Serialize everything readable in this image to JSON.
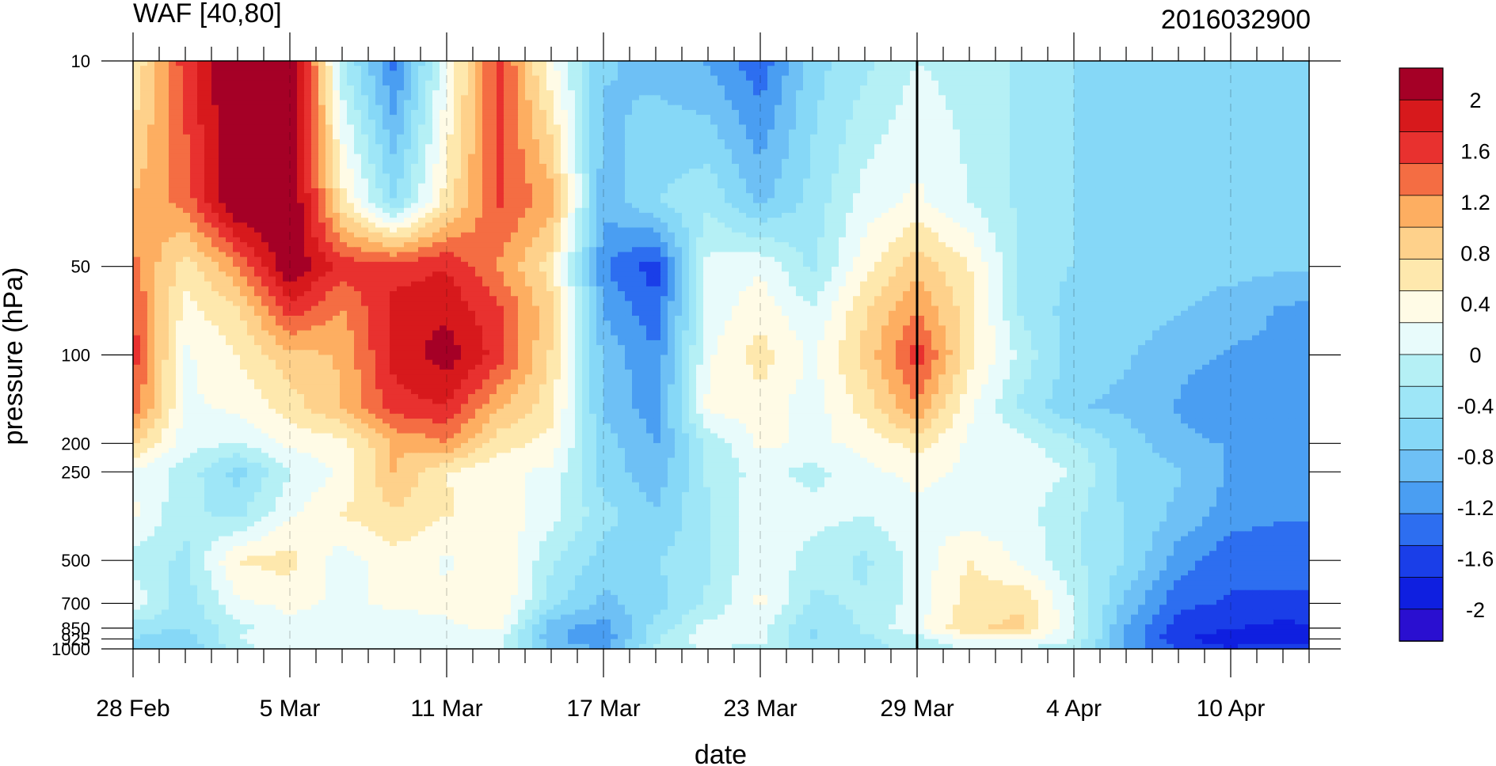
{
  "chart_data": {
    "type": "heatmap",
    "title": "WAF [40,80]",
    "subtitle": "2016032900",
    "xlabel": "date",
    "ylabel": "pressure (hPa)",
    "x_ticks": [
      {
        "label": "28 Feb",
        "day": 0
      },
      {
        "label": "5 Mar",
        "day": 6
      },
      {
        "label": "11 Mar",
        "day": 12
      },
      {
        "label": "17 Mar",
        "day": 18
      },
      {
        "label": "23 Mar",
        "day": 24
      },
      {
        "label": "29 Mar",
        "day": 30
      },
      {
        "label": "4 Apr",
        "day": 36
      },
      {
        "label": "10 Apr",
        "day": 42
      }
    ],
    "x_range": [
      "28 Feb",
      "15 Apr"
    ],
    "y_ticks": [
      {
        "label": "10",
        "p": 10
      },
      {
        "label": "50",
        "p": 50
      },
      {
        "label": "100",
        "p": 100
      },
      {
        "label": "200",
        "p": 200
      },
      {
        "label": "250",
        "p": 250
      },
      {
        "label": "500",
        "p": 500
      },
      {
        "label": "700",
        "p": 700
      },
      {
        "label": "850",
        "p": 850
      },
      {
        "label": "925",
        "p": 925
      },
      {
        "label": "1000",
        "p": 1000
      }
    ],
    "y_scale": "log",
    "y_reversed": true,
    "marked_date": "29 Mar",
    "colorbar": {
      "labels": [
        "2",
        "1.6",
        "1.2",
        "0.8",
        "0.4",
        "0",
        "-0.4",
        "-0.8",
        "-1.2",
        "-1.6",
        "-2"
      ],
      "colors": [
        "#a50026",
        "#d7191c",
        "#e8312f",
        "#f46d43",
        "#fdae61",
        "#fed18b",
        "#fee8ad",
        "#fffbe6",
        "#e8fbfb",
        "#b5f0f5",
        "#9ee6f7",
        "#86d8f7",
        "#6ec0f5",
        "#4a9ef2",
        "#2d6ef0",
        "#1a3ee8",
        "#0f1fe0",
        "#2a0fd0"
      ]
    },
    "grid": {
      "levels": [
        "10",
        "30",
        "50",
        "70",
        "100",
        "150",
        "200",
        "250",
        "350",
        "500",
        "700",
        "850",
        "925",
        "1000"
      ],
      "days": [
        0,
        2,
        4,
        6,
        8,
        10,
        12,
        14,
        16,
        18,
        20,
        22,
        24,
        26,
        28,
        30,
        32,
        34,
        36,
        38,
        40,
        42,
        44,
        46
      ],
      "values": [
        [
          0.5,
          1.6,
          2.3,
          2.5,
          -0.2,
          -1.3,
          0.2,
          1.6,
          0.3,
          -0.7,
          -0.8,
          -1.0,
          -1.4,
          -0.6,
          -0.3,
          0.0,
          -0.1,
          -0.3,
          -0.5,
          -0.5,
          -0.5,
          -0.5,
          -0.5,
          -0.5
        ],
        [
          1.0,
          1.3,
          2.3,
          2.3,
          0.6,
          -0.5,
          0.6,
          1.5,
          1.1,
          -0.9,
          -0.5,
          -0.3,
          -0.8,
          -0.4,
          0.1,
          0.3,
          0.0,
          -0.3,
          -0.5,
          -0.6,
          -0.6,
          -0.6,
          -0.5,
          -0.5
        ],
        [
          1.3,
          0.6,
          1.2,
          2.2,
          1.6,
          1.6,
          1.7,
          1.2,
          0.6,
          -1.2,
          -1.6,
          0.1,
          0.2,
          -0.3,
          0.4,
          0.9,
          0.5,
          -0.3,
          -0.5,
          -0.6,
          -0.6,
          -0.6,
          -0.7,
          -0.7
        ],
        [
          1.5,
          0.4,
          0.7,
          1.6,
          1.2,
          1.8,
          1.9,
          1.5,
          0.8,
          -1.0,
          -1.4,
          0.1,
          0.4,
          0.0,
          0.7,
          1.2,
          0.6,
          -0.3,
          -0.6,
          -0.6,
          -0.7,
          -0.9,
          -1.0,
          -1.1
        ],
        [
          1.6,
          0.2,
          0.5,
          0.9,
          1.0,
          1.8,
          2.1,
          1.6,
          0.7,
          -0.8,
          -1.2,
          0.2,
          0.6,
          0.2,
          0.8,
          1.6,
          0.6,
          -0.1,
          -0.6,
          -0.7,
          -0.9,
          -1.0,
          -1.0,
          -1.1
        ],
        [
          1.4,
          0.2,
          0.3,
          0.6,
          1.0,
          1.6,
          1.7,
          1.0,
          0.6,
          -0.8,
          -1.1,
          0.3,
          0.4,
          0.1,
          0.6,
          1.2,
          0.3,
          -0.3,
          -0.7,
          -0.8,
          -1.0,
          -1.2,
          -1.1,
          -1.1
        ],
        [
          0.8,
          0.1,
          0.0,
          0.3,
          0.4,
          1.0,
          1.2,
          0.6,
          0.4,
          -0.6,
          -1.0,
          -0.2,
          0.3,
          0.2,
          0.3,
          0.6,
          0.2,
          0.1,
          -0.2,
          -0.6,
          -0.9,
          -1.0,
          -1.1,
          -1.1
        ],
        [
          0.2,
          -0.1,
          -0.6,
          0.0,
          0.3,
          1.0,
          0.5,
          0.3,
          0.2,
          -0.6,
          -0.9,
          -0.2,
          0.1,
          -0.1,
          0.2,
          0.3,
          0.2,
          0.1,
          0.0,
          -0.6,
          -0.7,
          -1.0,
          -1.1,
          -1.1
        ],
        [
          0.3,
          -0.2,
          -0.3,
          0.2,
          0.5,
          0.7,
          0.5,
          0.4,
          0.1,
          -0.4,
          -0.7,
          -0.3,
          0.2,
          0.1,
          0.0,
          0.2,
          0.1,
          0.1,
          -0.2,
          -0.5,
          -0.8,
          -1.1,
          -1.2,
          -1.2
        ],
        [
          -0.1,
          -0.3,
          0.5,
          0.6,
          0.1,
          0.4,
          0.2,
          0.5,
          -0.2,
          -0.6,
          -0.5,
          -0.3,
          0.2,
          -0.1,
          -0.3,
          0.1,
          0.5,
          0.2,
          -0.2,
          -0.5,
          -1.1,
          -1.4,
          -1.4,
          -1.4
        ],
        [
          0.2,
          -0.4,
          0.2,
          0.3,
          0.2,
          0.3,
          0.3,
          0.5,
          -0.4,
          -0.8,
          -0.6,
          -0.2,
          0.3,
          -0.3,
          -0.2,
          0.1,
          0.6,
          0.7,
          0.0,
          -0.8,
          -1.4,
          -1.5,
          -1.5,
          -1.5
        ],
        [
          -0.4,
          -0.5,
          -0.1,
          0.2,
          0.1,
          0.1,
          0.2,
          0.3,
          -0.9,
          -1.1,
          -0.4,
          0.1,
          0.1,
          -0.5,
          -0.2,
          0.2,
          0.7,
          0.8,
          0.0,
          -1.0,
          -1.6,
          -1.7,
          -1.8,
          -1.7
        ],
        [
          -0.5,
          -0.6,
          0.0,
          0.2,
          0.1,
          0.2,
          0.2,
          0.1,
          -0.9,
          -1.2,
          -0.3,
          0.2,
          0.1,
          -0.5,
          -0.3,
          -0.1,
          0.3,
          0.3,
          0.0,
          -1.0,
          -1.7,
          -1.8,
          -1.8,
          -1.8
        ],
        [
          -0.6,
          -0.7,
          -0.1,
          0.1,
          0.0,
          0.2,
          0.1,
          0.0,
          -0.8,
          -1.0,
          -0.2,
          0.0,
          -0.1,
          -0.4,
          -0.3,
          -0.2,
          0.0,
          0.0,
          -0.2,
          -1.0,
          -1.5,
          -1.7,
          -1.6,
          -1.6
        ]
      ]
    }
  }
}
